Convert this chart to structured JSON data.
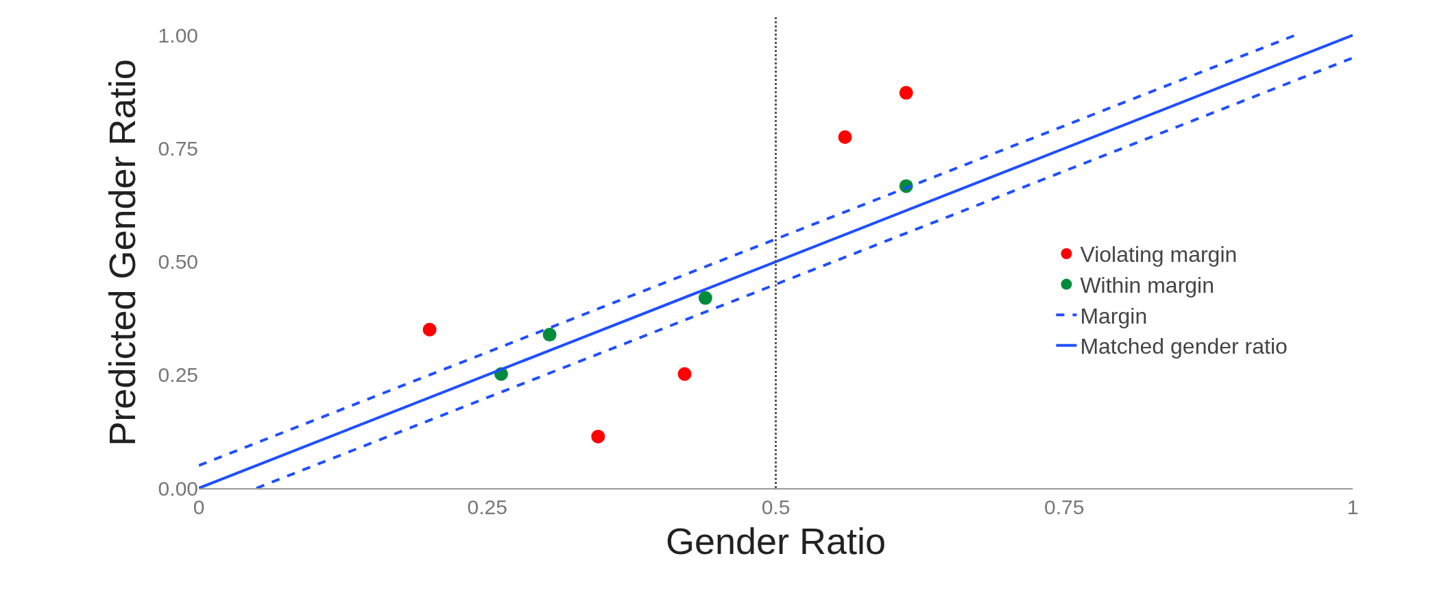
{
  "chart_data": {
    "type": "scatter",
    "xlabel": "Gender Ratio",
    "ylabel": "Predicted Gender Ratio",
    "xlim": [
      0,
      1
    ],
    "ylim": [
      0,
      1.04
    ],
    "xticks": [
      0,
      0.25,
      0.5,
      0.75,
      1
    ],
    "yticks": [
      {
        "value": 0,
        "label": "0.00"
      },
      {
        "value": 0.25,
        "label": "0.25"
      },
      {
        "value": 0.5,
        "label": "0.50"
      },
      {
        "value": 0.75,
        "label": "0.75"
      },
      {
        "value": 1,
        "label": "1.00"
      }
    ],
    "series": [
      {
        "name": "Violating margin",
        "marker": "circle",
        "color": "#ff0000",
        "x": [
          0.2,
          0.346,
          0.421,
          0.56,
          0.613
        ],
        "values": [
          0.35,
          0.114,
          0.252,
          0.775,
          0.873
        ]
      },
      {
        "name": "Within margin",
        "marker": "circle",
        "color": "#008c3a",
        "x": [
          0.262,
          0.304,
          0.439,
          0.613
        ],
        "values": [
          0.252,
          0.339,
          0.42,
          0.667
        ]
      },
      {
        "name": "Margin",
        "type": "line",
        "line_style": "dashed",
        "color": "#1f4fff",
        "x": [
          0,
          0.95
        ],
        "values": [
          0.05,
          1.0
        ]
      },
      {
        "type": "line",
        "line_style": "dashed",
        "color": "#1f4fff",
        "x": [
          0.05,
          1
        ],
        "values": [
          0,
          0.95
        ]
      },
      {
        "name": "Matched gender ratio",
        "type": "line",
        "line_style": "solid",
        "color": "#1f4fff",
        "x": [
          0,
          1
        ],
        "values": [
          0,
          1
        ]
      }
    ],
    "ref_lines": [
      {
        "axis": "x",
        "value": 0.5,
        "color": "#555555",
        "line_style": "dotted"
      }
    ],
    "legend": "right"
  }
}
